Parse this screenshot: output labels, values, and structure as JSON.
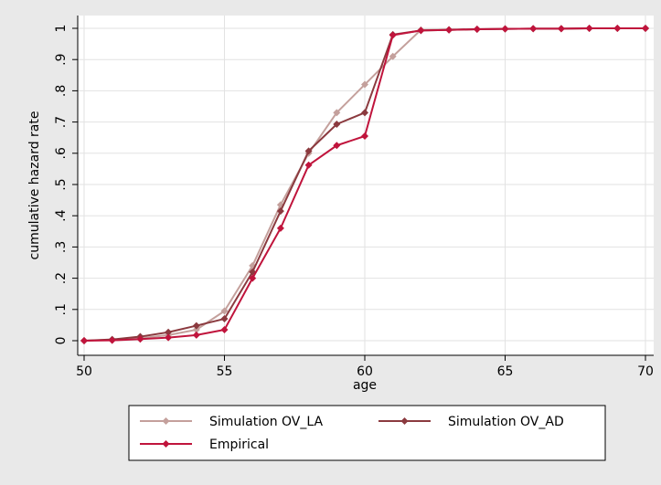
{
  "chart_data": {
    "type": "line",
    "title": "",
    "xlabel": "age",
    "ylabel": "cumulative hazard rate",
    "xlim": [
      50,
      70
    ],
    "ylim": [
      0,
      1
    ],
    "x_ticks": [
      {
        "value": 50,
        "label": "50"
      },
      {
        "value": 55,
        "label": "55"
      },
      {
        "value": 60,
        "label": "60"
      },
      {
        "value": 65,
        "label": "65"
      },
      {
        "value": 70,
        "label": "70"
      }
    ],
    "y_ticks": [
      {
        "value": 0,
        "label": "0"
      },
      {
        "value": 0.1,
        "label": ".1"
      },
      {
        "value": 0.2,
        "label": ".2"
      },
      {
        "value": 0.3,
        "label": ".3"
      },
      {
        "value": 0.4,
        "label": ".4"
      },
      {
        "value": 0.5,
        "label": ".5"
      },
      {
        "value": 0.6,
        "label": ".6"
      },
      {
        "value": 0.7,
        "label": ".7"
      },
      {
        "value": 0.8,
        "label": ".8"
      },
      {
        "value": 0.9,
        "label": ".9"
      },
      {
        "value": 1,
        "label": "1"
      }
    ],
    "grid": "horizontal and vertical at major ticks",
    "legend_position": "bottom",
    "x": [
      50,
      51,
      52,
      53,
      54,
      55,
      56,
      57,
      58,
      59,
      60,
      61,
      62,
      63,
      64,
      65,
      66,
      67,
      68,
      69,
      70
    ],
    "series": [
      {
        "name": "Simulation OV_LA",
        "color": "#c4a09c",
        "values": [
          0,
          0.003,
          0.008,
          0.018,
          0.035,
          0.095,
          0.24,
          0.435,
          0.6,
          0.73,
          0.82,
          0.91,
          0.995,
          0.996,
          0.997,
          0.998,
          0.999,
          0.999,
          1.0,
          1.0,
          1.0
        ]
      },
      {
        "name": "Simulation OV_AD",
        "color": "#8b3a3f",
        "values": [
          0,
          0.004,
          0.013,
          0.027,
          0.048,
          0.07,
          0.22,
          0.415,
          0.607,
          0.693,
          0.73,
          0.98,
          0.993,
          0.995,
          0.997,
          0.998,
          0.999,
          0.999,
          1.0,
          1.0,
          1.0
        ]
      },
      {
        "name": "Empirical",
        "color": "#c0143c",
        "values": [
          0,
          0.001,
          0.005,
          0.01,
          0.018,
          0.035,
          0.2,
          0.36,
          0.562,
          0.625,
          0.655,
          0.978,
          0.993,
          0.995,
          0.997,
          0.998,
          0.999,
          0.999,
          1.0,
          1.0,
          1.0
        ]
      }
    ]
  }
}
